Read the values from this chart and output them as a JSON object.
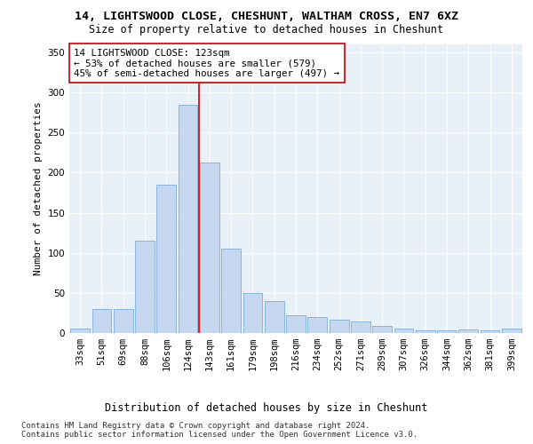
{
  "title": "14, LIGHTSWOOD CLOSE, CHESHUNT, WALTHAM CROSS, EN7 6XZ",
  "subtitle": "Size of property relative to detached houses in Cheshunt",
  "xlabel_bottom": "Distribution of detached houses by size in Cheshunt",
  "ylabel": "Number of detached properties",
  "categories": [
    "33sqm",
    "51sqm",
    "69sqm",
    "88sqm",
    "106sqm",
    "124sqm",
    "143sqm",
    "161sqm",
    "179sqm",
    "198sqm",
    "216sqm",
    "234sqm",
    "252sqm",
    "271sqm",
    "289sqm",
    "307sqm",
    "326sqm",
    "344sqm",
    "362sqm",
    "381sqm",
    "399sqm"
  ],
  "bar_heights": [
    5,
    30,
    30,
    115,
    185,
    285,
    213,
    105,
    50,
    40,
    22,
    20,
    17,
    14,
    9,
    5,
    3,
    3,
    4,
    3,
    5
  ],
  "bar_color": "#c5d8f0",
  "bar_edge_color": "#7aaed6",
  "vline_color": "#cc0000",
  "vline_x": 5.5,
  "annotation_text": "14 LIGHTSWOOD CLOSE: 123sqm\n← 53% of detached houses are smaller (579)\n45% of semi-detached houses are larger (497) →",
  "annotation_box_color": "white",
  "annotation_box_edgecolor": "#cc0000",
  "ylim": [
    0,
    360
  ],
  "yticks": [
    0,
    50,
    100,
    150,
    200,
    250,
    300,
    350
  ],
  "footnote1": "Contains HM Land Registry data © Crown copyright and database right 2024.",
  "footnote2": "Contains public sector information licensed under the Open Government Licence v3.0.",
  "bg_color": "#e8f0f8",
  "grid_color": "white",
  "title_fontsize": 9.5,
  "subtitle_fontsize": 8.5,
  "ylabel_fontsize": 8,
  "annot_fontsize": 7.8,
  "tick_fontsize": 7.5,
  "footnote_fontsize": 6.5,
  "xlabel_bottom_fontsize": 8.5
}
